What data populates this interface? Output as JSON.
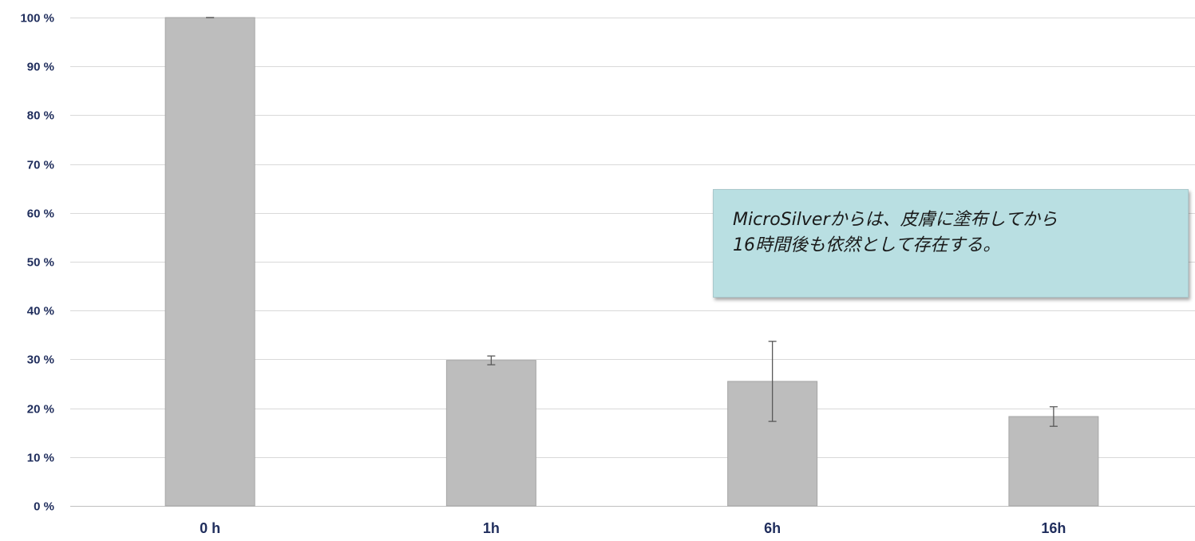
{
  "chart_data": {
    "type": "bar",
    "categories": [
      "0 h",
      "1h",
      "6h",
      "16h"
    ],
    "values": [
      100,
      29.8,
      25.5,
      18.3
    ],
    "errors": [
      0,
      0.9,
      8.2,
      2.0
    ],
    "title": "",
    "xlabel": "",
    "ylabel": "",
    "ylim": [
      0,
      100
    ],
    "yticks": [
      0,
      10,
      20,
      30,
      40,
      50,
      60,
      70,
      80,
      90,
      100
    ],
    "ytick_suffix": " %",
    "grid": true,
    "bar_color": "#bdbdbd",
    "annotation": {
      "lines": [
        "MicroSilverからは、皮膚に塗布してから",
        "16時間後も依然として存在する。"
      ]
    }
  }
}
